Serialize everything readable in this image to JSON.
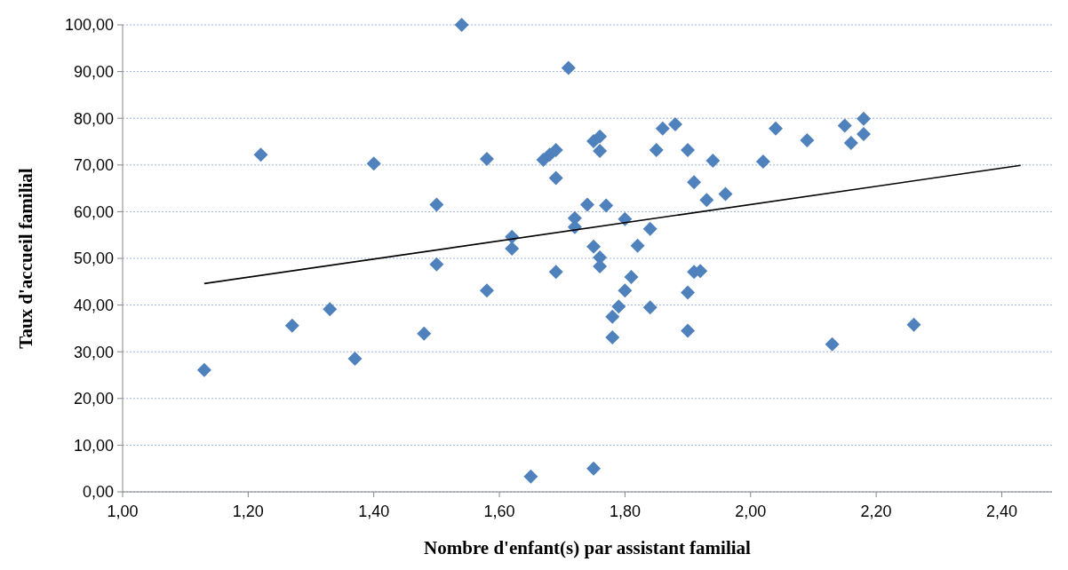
{
  "chart_data": {
    "type": "scatter",
    "xlabel": "Nombre d'enfant(s) par assistant familial",
    "ylabel": "Taux d'accueil familial",
    "xlim": [
      1,
      2.48
    ],
    "ylim": [
      0,
      100
    ],
    "xticks": [
      {
        "value": 1,
        "label": "1,00"
      },
      {
        "value": 1.2,
        "label": "1,20"
      },
      {
        "value": 1.4,
        "label": "1,40"
      },
      {
        "value": 1.6,
        "label": "1,60"
      },
      {
        "value": 1.8,
        "label": "1,80"
      },
      {
        "value": 2,
        "label": "2,00"
      },
      {
        "value": 2.2,
        "label": "2,20"
      },
      {
        "value": 2.4,
        "label": "2,40"
      }
    ],
    "yticks": [
      {
        "value": 0,
        "label": "0,00"
      },
      {
        "value": 10,
        "label": "10,00"
      },
      {
        "value": 20,
        "label": "20,00"
      },
      {
        "value": 30,
        "label": "30,00"
      },
      {
        "value": 40,
        "label": "40,00"
      },
      {
        "value": 50,
        "label": "50,00"
      },
      {
        "value": 60,
        "label": "60,00"
      },
      {
        "value": 70,
        "label": "70,00"
      },
      {
        "value": 80,
        "label": "80,00"
      },
      {
        "value": 90,
        "label": "90,00"
      },
      {
        "value": 100,
        "label": "100,00"
      }
    ],
    "grid": "y",
    "series": [
      {
        "color": "#4f81bd",
        "marker": "diamond",
        "x": [
          1.13,
          1.22,
          1.27,
          1.33,
          1.37,
          1.4,
          1.48,
          1.5,
          1.5,
          1.54,
          1.58,
          1.58,
          1.62,
          1.62,
          1.67,
          1.68,
          1.69,
          1.69,
          1.69,
          1.65,
          1.71,
          1.72,
          1.72,
          1.74,
          1.75,
          1.76,
          1.76,
          1.77,
          1.75,
          1.76,
          1.76,
          1.75,
          1.8,
          1.84,
          1.82,
          1.81,
          1.8,
          1.79,
          1.78,
          1.78,
          1.84,
          1.86,
          1.88,
          1.85,
          1.9,
          1.94,
          1.91,
          1.93,
          1.96,
          1.91,
          1.92,
          1.9,
          1.9,
          2.02,
          2.04,
          2.09,
          2.15,
          2.18,
          2.16,
          2.18,
          2.13,
          2.26
        ],
        "values": [
          26.1,
          72.2,
          35.6,
          39.1,
          28.5,
          70.3,
          33.9,
          61.5,
          48.7,
          100,
          43.1,
          71.3,
          54.6,
          52.1,
          71.1,
          72.2,
          73.2,
          67.2,
          47.1,
          3.3,
          90.8,
          56.7,
          58.6,
          61.5,
          75.1,
          76.1,
          73.0,
          61.3,
          52.5,
          50.2,
          48.3,
          5.0,
          58.4,
          56.3,
          52.7,
          46.0,
          43.1,
          39.7,
          37.5,
          33.1,
          39.5,
          77.8,
          78.7,
          73.2,
          73.2,
          70.9,
          66.3,
          62.5,
          63.8,
          47.1,
          47.3,
          42.7,
          34.5,
          70.7,
          77.8,
          75.3,
          78.4,
          79.9,
          74.7,
          76.6,
          31.6,
          35.8
        ]
      },
      {
        "type": "line",
        "color": "#000000",
        "marker": "none",
        "line_style": "solid",
        "x": [
          1.13,
          2.43
        ],
        "values": [
          44.6,
          69.9
        ]
      }
    ]
  }
}
